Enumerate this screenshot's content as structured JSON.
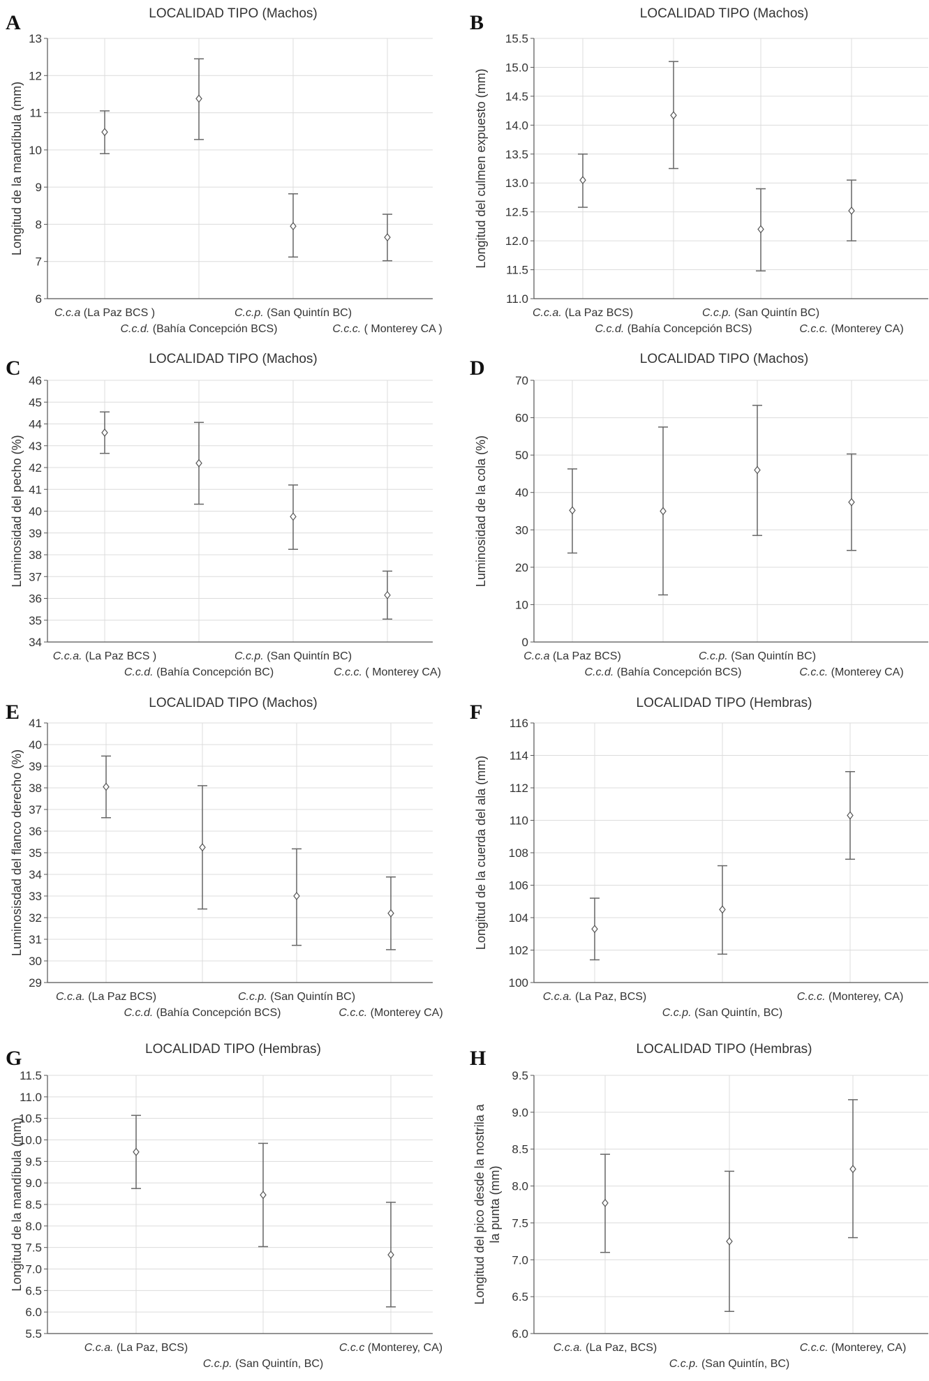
{
  "chart_data": [
    {
      "panel": "A",
      "type": "scatter",
      "title": "LOCALIDAD TIPO (Machos)",
      "ylabel": "Longitud de la mandíbula (mm)",
      "ylim": [
        6,
        13
      ],
      "yticks": [
        6,
        7,
        8,
        9,
        10,
        11,
        12,
        13
      ],
      "categories": [
        {
          "italic": "C.c.a",
          "rest": " (La Paz BCS )"
        },
        {
          "italic": "C.c.d.",
          "rest": " (Bahía Concepción BCS)"
        },
        {
          "italic": "C.c.p.",
          "rest": " (San Quintín BC)"
        },
        {
          "italic": "C.c.c.",
          "rest": " ( Monterey CA )"
        }
      ],
      "means": [
        10.48,
        11.38,
        7.95,
        7.65
      ],
      "lower": [
        9.9,
        10.28,
        7.12,
        7.02
      ],
      "upper": [
        11.05,
        12.45,
        8.82,
        8.27
      ],
      "grid": true
    },
    {
      "panel": "B",
      "type": "scatter",
      "title": "LOCALIDAD TIPO (Machos)",
      "ylabel": "Longitud del culmen expuesto (mm)",
      "ylim": [
        11.0,
        15.5
      ],
      "yticks": [
        "11.0",
        "11.5",
        "12.0",
        "12.5",
        "13.0",
        "13.5",
        "14.0",
        "14.5",
        "15.0",
        "15.5"
      ],
      "categories": [
        {
          "italic": "C.c.a.",
          "rest": " (La Paz BCS)"
        },
        {
          "italic": "C.c.d.",
          "rest": " (Bahía Concepción BCS)"
        },
        {
          "italic": "C.c.p.",
          "rest": " (San Quintín BC)"
        },
        {
          "italic": "C.c.c.",
          "rest": " (Monterey CA)"
        }
      ],
      "means": [
        13.05,
        14.17,
        12.2,
        12.52
      ],
      "lower": [
        12.58,
        13.25,
        11.48,
        12.0
      ],
      "upper": [
        13.5,
        15.1,
        12.9,
        13.05
      ],
      "grid": true
    },
    {
      "panel": "C",
      "type": "scatter",
      "title": "LOCALIDAD TIPO (Machos)",
      "ylabel": "Luminosidad del pecho (%)",
      "ylim": [
        34,
        46
      ],
      "yticks": [
        34,
        35,
        36,
        37,
        38,
        39,
        40,
        41,
        42,
        43,
        44,
        45,
        46
      ],
      "categories": [
        {
          "italic": "C.c.a.",
          "rest": " (La Paz BCS )"
        },
        {
          "italic": "C.c.d.",
          "rest": " (Bahía Concepción BC)"
        },
        {
          "italic": "C.c.p.",
          "rest": " (San Quintín BC)"
        },
        {
          "italic": "C.c.c.",
          "rest": " ( Monterey CA)"
        }
      ],
      "means": [
        43.6,
        42.2,
        39.75,
        36.15
      ],
      "lower": [
        42.65,
        40.32,
        38.25,
        35.05
      ],
      "upper": [
        44.55,
        44.07,
        41.2,
        37.25
      ],
      "grid": true
    },
    {
      "panel": "D",
      "type": "scatter",
      "title": "LOCALIDAD TIPO (Machos)",
      "ylabel": "Luminosidad de la cola (%)",
      "ylim": [
        0,
        70
      ],
      "yticks": [
        0,
        10,
        20,
        30,
        40,
        50,
        60,
        70
      ],
      "categories": [
        {
          "italic": "C.c.a",
          "rest": " (La Paz BCS)"
        },
        {
          "italic": "C.c.d.",
          "rest": " (Bahía Concepción BCS)"
        },
        {
          "italic": "C.c.p.",
          "rest": " (San Quintín BC)"
        },
        {
          "italic": "C.c.c.",
          "rest": " (Monterey CA)"
        }
      ],
      "means": [
        35.2,
        35.0,
        46.0,
        37.4
      ],
      "lower": [
        23.8,
        12.6,
        28.5,
        24.5
      ],
      "upper": [
        46.3,
        57.5,
        63.3,
        50.3
      ],
      "grid": true
    },
    {
      "panel": "E",
      "type": "scatter",
      "title": "LOCALIDAD TIPO (Machos)",
      "ylabel": "Luminosisdad del flanco derecho (%)",
      "ylim": [
        29,
        41
      ],
      "yticks": [
        29,
        30,
        31,
        32,
        33,
        34,
        35,
        36,
        37,
        38,
        39,
        40,
        41
      ],
      "categories": [
        {
          "italic": "C.c.a.",
          "rest": " (La Paz BCS)"
        },
        {
          "italic": "C.c.d.",
          "rest": " (Bahía Concepción BCS)"
        },
        {
          "italic": "C.c.p.",
          "rest": " (San Quintín BC)"
        },
        {
          "italic": "C.c.c.",
          "rest": " (Monterey CA)"
        }
      ],
      "means": [
        38.05,
        35.25,
        33.0,
        32.2
      ],
      "lower": [
        36.62,
        32.4,
        30.72,
        30.52
      ],
      "upper": [
        39.47,
        38.1,
        35.18,
        33.88
      ],
      "grid": true
    },
    {
      "panel": "F",
      "type": "scatter",
      "title": "LOCALIDAD TIPO (Hembras)",
      "ylabel": "Longitud de la cuerda del ala (mm)",
      "ylim": [
        100,
        116
      ],
      "yticks": [
        100,
        102,
        104,
        106,
        108,
        110,
        112,
        114,
        116
      ],
      "categories": [
        {
          "italic": "C.c.a.",
          "rest": " (La Paz, BCS)"
        },
        {
          "italic": "C.c.p.",
          "rest": " (San Quintín, BC)"
        },
        {
          "italic": "C.c.c.",
          "rest": " (Monterey, CA)"
        }
      ],
      "means": [
        103.3,
        104.5,
        110.3
      ],
      "lower": [
        101.4,
        101.75,
        107.6
      ],
      "upper": [
        105.2,
        107.2,
        113.0
      ],
      "grid": true
    },
    {
      "panel": "G",
      "type": "scatter",
      "title": "LOCALIDAD TIPO (Hembras)",
      "ylabel": "Longitud de la mandíbula (mm)",
      "ylim": [
        5.5,
        11.5
      ],
      "yticks": [
        "5.5",
        "6.0",
        "6.5",
        "7.0",
        "7.5",
        "8.0",
        "8.5",
        "9.0",
        "9.5",
        "10.0",
        "10.5",
        "11.0",
        "11.5"
      ],
      "categories": [
        {
          "italic": "C.c.a.",
          "rest": " (La Paz, BCS)"
        },
        {
          "italic": "C.c.p.",
          "rest": " (San Quintín, BC)"
        },
        {
          "italic": "C.c.c",
          "rest": " (Monterey, CA)"
        }
      ],
      "means": [
        9.72,
        8.72,
        7.33
      ],
      "lower": [
        8.87,
        7.52,
        6.12
      ],
      "upper": [
        10.57,
        9.92,
        8.55
      ],
      "grid": true
    },
    {
      "panel": "H",
      "type": "scatter",
      "title": "LOCALIDAD TIPO (Hembras)",
      "ylabel": [
        "Longitud del pico desde la nostrila a",
        "la punta (mm)"
      ],
      "ylim": [
        6.0,
        9.5
      ],
      "yticks": [
        "6.0",
        "6.5",
        "7.0",
        "7.5",
        "8.0",
        "8.5",
        "9.0",
        "9.5"
      ],
      "categories": [
        {
          "italic": "C.c.a.",
          "rest": " (La Paz, BCS)"
        },
        {
          "italic": "C.c.p.",
          "rest": " (San Quintín, BC)"
        },
        {
          "italic": "C.c.c.",
          "rest": " (Monterey, CA)"
        }
      ],
      "means": [
        7.77,
        7.25,
        8.23
      ],
      "lower": [
        7.1,
        6.3,
        7.3
      ],
      "upper": [
        8.43,
        8.2,
        9.17
      ],
      "grid": true
    }
  ]
}
